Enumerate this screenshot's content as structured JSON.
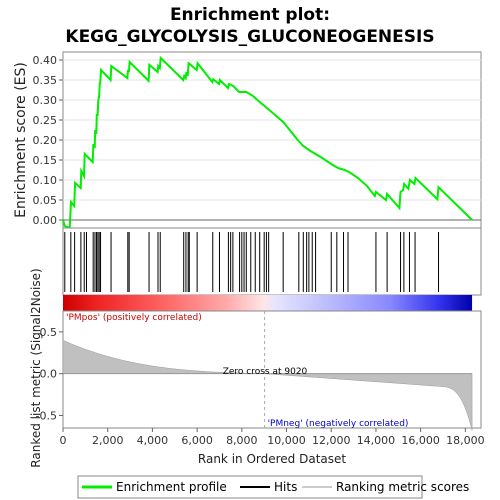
{
  "chart_data": {
    "type": "line",
    "title_line1": "Enrichment plot:",
    "title_line2": "KEGG_GLYCOLYSIS_GLUCONEOGENESIS",
    "es_panel": {
      "ylabel": "Enrichment score (ES)",
      "ylim": [
        -0.02,
        0.42
      ],
      "yticks": [
        0.0,
        0.05,
        0.1,
        0.15,
        0.2,
        0.25,
        0.3,
        0.35,
        0.4
      ],
      "ytick_labels": [
        "0.00",
        "0.05",
        "0.10",
        "0.15",
        "0.20",
        "0.25",
        "0.30",
        "0.35",
        "0.40"
      ],
      "grid": true,
      "line_color": "#00ee00"
    },
    "metric_panel": {
      "ylabel": "Ranked list metric (Signal2Noise)",
      "ylim": [
        -0.65,
        0.75
      ],
      "yticks": [
        0.5,
        0.0,
        -0.5
      ],
      "ytick_labels": [
        "0.5",
        "0.0",
        "-0.5"
      ],
      "zero_cross_label": "Zero cross at 9020",
      "zero_cross": 9020,
      "pos_label": "'PMpos' (positively correlated)",
      "neg_label": "'PMneg' (negatively correlated)",
      "pos_color": "#cc0000",
      "neg_color": "#0000cc"
    },
    "xlabel": "Rank in Ordered Dataset",
    "xlim": [
      0,
      18700
    ],
    "xticks": [
      0,
      2000,
      4000,
      6000,
      8000,
      10000,
      12000,
      14000,
      16000,
      18000
    ],
    "xtick_labels": [
      "0",
      "2,000",
      "4,000",
      "6,000",
      "8,000",
      "10,000",
      "12,000",
      "14,000",
      "16,000",
      "18,000"
    ],
    "n_total": 18300,
    "hits": [
      80,
      350,
      520,
      800,
      950,
      1050,
      1350,
      1430,
      1500,
      1560,
      1620,
      1680,
      2150,
      2900,
      2960,
      3850,
      4250,
      4350,
      5400,
      5500,
      5600,
      5650,
      6000,
      6700,
      7000,
      7400,
      7500,
      7600,
      7900,
      8000,
      8100,
      8200,
      8400,
      8600,
      8800,
      9000,
      9100,
      9200,
      9850,
      10550,
      10750,
      10900,
      11000,
      11150,
      11300,
      12000,
      12250,
      12550,
      12750,
      14000,
      14500,
      15100,
      15250,
      15500,
      15750,
      16800
    ],
    "es_curve": [
      [
        0,
        0.0
      ],
      [
        80,
        -0.015
      ],
      [
        300,
        -0.02
      ],
      [
        360,
        0.045
      ],
      [
        500,
        0.035
      ],
      [
        540,
        0.093
      ],
      [
        790,
        0.08
      ],
      [
        820,
        0.123
      ],
      [
        940,
        0.11
      ],
      [
        970,
        0.165
      ],
      [
        1330,
        0.145
      ],
      [
        1360,
        0.19
      ],
      [
        1420,
        0.18
      ],
      [
        1440,
        0.225
      ],
      [
        1490,
        0.215
      ],
      [
        1510,
        0.265
      ],
      [
        1550,
        0.26
      ],
      [
        1580,
        0.3
      ],
      [
        1620,
        0.31
      ],
      [
        1640,
        0.34
      ],
      [
        1670,
        0.345
      ],
      [
        1700,
        0.375
      ],
      [
        2130,
        0.35
      ],
      [
        2160,
        0.385
      ],
      [
        2880,
        0.355
      ],
      [
        2910,
        0.375
      ],
      [
        2950,
        0.37
      ],
      [
        2980,
        0.395
      ],
      [
        3830,
        0.348
      ],
      [
        3860,
        0.388
      ],
      [
        4230,
        0.37
      ],
      [
        4260,
        0.385
      ],
      [
        4330,
        0.38
      ],
      [
        4370,
        0.405
      ],
      [
        5380,
        0.35
      ],
      [
        5420,
        0.36
      ],
      [
        5490,
        0.355
      ],
      [
        5520,
        0.37
      ],
      [
        5580,
        0.36
      ],
      [
        5620,
        0.392
      ],
      [
        5670,
        0.39
      ],
      [
        5980,
        0.375
      ],
      [
        6020,
        0.392
      ],
      [
        6680,
        0.345
      ],
      [
        6720,
        0.352
      ],
      [
        6980,
        0.34
      ],
      [
        7020,
        0.35
      ],
      [
        7380,
        0.33
      ],
      [
        7420,
        0.34
      ],
      [
        7620,
        0.335
      ],
      [
        7880,
        0.32
      ],
      [
        8200,
        0.32
      ],
      [
        8500,
        0.31
      ],
      [
        8800,
        0.295
      ],
      [
        9020,
        0.285
      ],
      [
        9500,
        0.262
      ],
      [
        9850,
        0.245
      ],
      [
        10000,
        0.235
      ],
      [
        10500,
        0.2
      ],
      [
        10750,
        0.185
      ],
      [
        11000,
        0.175
      ],
      [
        11300,
        0.165
      ],
      [
        11600,
        0.155
      ],
      [
        12000,
        0.14
      ],
      [
        12300,
        0.13
      ],
      [
        12600,
        0.125
      ],
      [
        12800,
        0.12
      ],
      [
        13200,
        0.105
      ],
      [
        13600,
        0.085
      ],
      [
        13950,
        0.06
      ],
      [
        14000,
        0.07
      ],
      [
        14450,
        0.05
      ],
      [
        14500,
        0.065
      ],
      [
        15050,
        0.03
      ],
      [
        15100,
        0.07
      ],
      [
        15220,
        0.075
      ],
      [
        15260,
        0.09
      ],
      [
        15450,
        0.078
      ],
      [
        15520,
        0.1
      ],
      [
        15720,
        0.09
      ],
      [
        15770,
        0.105
      ],
      [
        16750,
        0.052
      ],
      [
        16800,
        0.082
      ],
      [
        18300,
        0.0
      ]
    ]
  },
  "legend": {
    "items": [
      {
        "label": "Enrichment profile",
        "color": "#00ee00"
      },
      {
        "label": "Hits",
        "color": "#000000"
      },
      {
        "label": "Ranking metric scores",
        "color": "#cccccc"
      }
    ]
  }
}
